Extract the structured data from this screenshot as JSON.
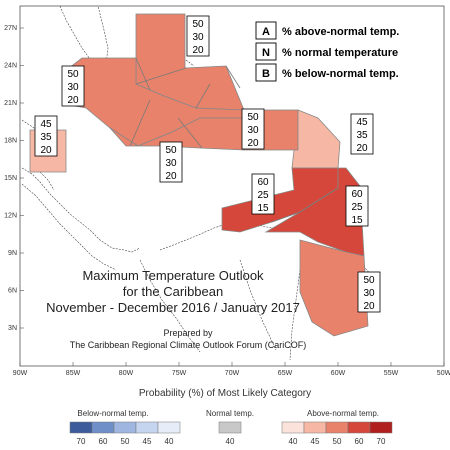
{
  "map": {
    "x_ticks": [
      "90W",
      "85W",
      "80W",
      "75W",
      "70W",
      "65W",
      "60W",
      "55W",
      "50W"
    ],
    "y_ticks": [
      "27N",
      "24N",
      "21N",
      "18N",
      "15N",
      "12N",
      "9N",
      "6N",
      "3N"
    ]
  },
  "regions": [
    {
      "id": "bahamas",
      "values": [
        "50",
        "30",
        "20"
      ],
      "color": "#e8826a"
    },
    {
      "id": "cuba",
      "values": [
        "50",
        "30",
        "20"
      ],
      "color": "#e8826a"
    },
    {
      "id": "belize",
      "values": [
        "45",
        "35",
        "20"
      ],
      "color": "#f6b8a4"
    },
    {
      "id": "jamaica",
      "values": [
        "50",
        "30",
        "20"
      ],
      "color": "#e8826a"
    },
    {
      "id": "hispaniola",
      "values": [
        "50",
        "30",
        "20"
      ],
      "color": "#e8826a"
    },
    {
      "id": "leeward",
      "values": [
        "45",
        "35",
        "20"
      ],
      "color": "#f6b8a4"
    },
    {
      "id": "abc",
      "values": [
        "60",
        "25",
        "15"
      ],
      "color": "#d4473a"
    },
    {
      "id": "windward",
      "values": [
        "60",
        "25",
        "15"
      ],
      "color": "#d4473a"
    },
    {
      "id": "guianas",
      "values": [
        "50",
        "30",
        "20"
      ],
      "color": "#e8826a"
    }
  ],
  "legend": {
    "A": {
      "letter": "A",
      "text": "% above-normal temp."
    },
    "N": {
      "letter": "N",
      "text": "% normal temperature"
    },
    "B": {
      "letter": "B",
      "text": "% below-normal temp."
    }
  },
  "titles": {
    "line1": "Maximum Temperature Outlook",
    "line2": "for the Caribbean",
    "line3": "November - December 2016 / January 2017",
    "prepared1": "Prepared by",
    "prepared2": "The Caribbean Regional Climate Outlook Forum (CariCOF)"
  },
  "colorbar": {
    "title": "Probability (%) of Most Likely Category",
    "below": {
      "label": "Below-normal temp.",
      "values": [
        "70",
        "60",
        "50",
        "45",
        "40"
      ],
      "colors": [
        "#3b5b9a",
        "#6f8fc8",
        "#9fb6e0",
        "#c6d5ef",
        "#e6edf8"
      ]
    },
    "normal": {
      "label": "Normal temp.",
      "values": [
        "40"
      ],
      "colors": [
        "#c8c8c8"
      ]
    },
    "above": {
      "label": "Above-normal temp.",
      "values": [
        "40",
        "45",
        "50",
        "60",
        "70"
      ],
      "colors": [
        "#fbe3dc",
        "#f6b8a4",
        "#e8826a",
        "#d4473a",
        "#b01e1e"
      ]
    }
  }
}
